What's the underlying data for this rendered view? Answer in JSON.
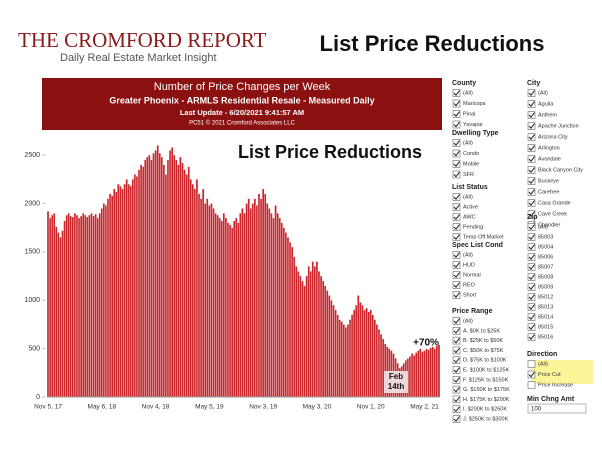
{
  "header": {
    "brand": "THE CROMFORD REPORT",
    "tagline": "Daily Real Estate Market Insight",
    "slide_title": "List Price Reductions"
  },
  "chart_data": {
    "type": "bar",
    "title": "Number of Price Changes per Week",
    "subtitle": "Greater Phoenix - ARMLS Residential Resale - Measured Daily",
    "update": "Last Update - 6/20/2021 9:41:57 AM",
    "credit": "PC51 © 2021 Cromford Associates LLC",
    "color": "#c9252b",
    "grid": false,
    "annotations": {
      "heading": "List Price Reductions",
      "change": "+70%",
      "low": [
        "Feb",
        "14th"
      ]
    },
    "ylim": [
      0,
      2800
    ],
    "yticks": [
      0,
      500,
      1000,
      1500,
      2000,
      2500
    ],
    "categories": [
      "Nov 5, 17",
      null,
      null,
      null,
      null,
      null,
      null,
      null,
      null,
      null,
      null,
      null,
      null,
      null,
      null,
      null,
      null,
      null,
      null,
      null,
      null,
      null,
      null,
      null,
      null,
      null,
      "May 6, 18",
      null,
      null,
      null,
      null,
      null,
      null,
      null,
      null,
      null,
      null,
      null,
      null,
      null,
      null,
      null,
      null,
      null,
      null,
      null,
      null,
      null,
      null,
      null,
      null,
      null,
      "Nov 4, 18",
      null,
      null,
      null,
      null,
      null,
      null,
      null,
      null,
      null,
      null,
      null,
      null,
      null,
      null,
      null,
      null,
      null,
      null,
      null,
      null,
      null,
      null,
      null,
      null,
      null,
      "May 5, 19",
      null,
      null,
      null,
      null,
      null,
      null,
      null,
      null,
      null,
      null,
      null,
      null,
      null,
      null,
      null,
      null,
      null,
      null,
      null,
      null,
      null,
      null,
      null,
      null,
      null,
      "Nov 3, 19",
      null,
      null,
      null,
      null,
      null,
      null,
      null,
      null,
      null,
      null,
      null,
      null,
      null,
      null,
      null,
      null,
      null,
      null,
      null,
      null,
      null,
      null,
      null,
      null,
      null,
      "May 3, 20",
      null,
      null,
      null,
      null,
      null,
      null,
      null,
      null,
      null,
      null,
      null,
      null,
      null,
      null,
      null,
      null,
      null,
      null,
      null,
      null,
      null,
      null,
      null,
      null,
      null,
      "Nov 1, 20",
      null,
      null,
      null,
      null,
      null,
      null,
      null,
      null,
      null,
      null,
      null,
      null,
      null,
      null,
      null,
      null,
      null,
      null,
      null,
      null,
      null,
      null,
      null,
      null,
      null,
      "May 2, 21",
      null,
      null,
      null,
      null,
      null,
      null,
      null
    ],
    "values": [
      1920,
      1850,
      1880,
      1900,
      1760,
      1700,
      1650,
      1720,
      1820,
      1880,
      1900,
      1870,
      1860,
      1900,
      1880,
      1850,
      1870,
      1900,
      1880,
      1860,
      1880,
      1900,
      1870,
      1890,
      1850,
      1900,
      1950,
      2000,
      1980,
      2050,
      2100,
      2080,
      2150,
      2120,
      2200,
      2180,
      2150,
      2200,
      2250,
      2200,
      2180,
      2250,
      2300,
      2280,
      2350,
      2400,
      2380,
      2450,
      2480,
      2500,
      2450,
      2520,
      2550,
      2600,
      2520,
      2480,
      2400,
      2300,
      2450,
      2550,
      2580,
      2500,
      2450,
      2400,
      2480,
      2420,
      2350,
      2300,
      2380,
      2250,
      2200,
      2150,
      2250,
      2100,
      2050,
      2150,
      2000,
      2050,
      1980,
      2000,
      1950,
      1900,
      1880,
      1850,
      1820,
      1900,
      1850,
      1800,
      1780,
      1750,
      1820,
      1850,
      1800,
      1900,
      1950,
      1900,
      2000,
      2050,
      1950,
      2000,
      2050,
      1980,
      2100,
      2050,
      2150,
      2100,
      2000,
      1950,
      1900,
      1850,
      1980,
      1900,
      1850,
      1800,
      1750,
      1700,
      1650,
      1600,
      1550,
      1450,
      1350,
      1300,
      1250,
      1200,
      1150,
      1250,
      1350,
      1300,
      1400,
      1350,
      1400,
      1300,
      1250,
      1200,
      1150,
      1100,
      1050,
      1000,
      950,
      900,
      850,
      800,
      780,
      750,
      720,
      750,
      800,
      850,
      900,
      950,
      1050,
      980,
      950,
      900,
      920,
      880,
      900,
      850,
      800,
      750,
      700,
      650,
      600,
      550,
      520,
      500,
      480,
      450,
      400,
      350,
      300,
      320,
      350,
      380,
      400,
      420,
      450,
      430,
      460,
      480,
      500,
      470,
      480,
      500,
      490,
      510,
      520,
      500,
      530,
      540
    ]
  },
  "filters": [
    {
      "title": "County",
      "items": [
        {
          "label": "(All)",
          "checked": true
        },
        {
          "label": "Maricopa",
          "checked": true
        },
        {
          "label": "Pinal",
          "checked": true
        },
        {
          "label": "Yavapai",
          "checked": true
        }
      ]
    },
    {
      "title": "Dwelling Type",
      "items": [
        {
          "label": "(All)",
          "checked": true
        },
        {
          "label": "Condo",
          "checked": true
        },
        {
          "label": "Mobile",
          "checked": true
        },
        {
          "label": "SFR",
          "checked": true
        }
      ]
    },
    {
      "title": "List Status",
      "items": [
        {
          "label": "(All)",
          "checked": true
        },
        {
          "label": "Active",
          "checked": true
        },
        {
          "label": "AWC",
          "checked": true
        },
        {
          "label": "Pending",
          "checked": true
        },
        {
          "label": "Temp Off Market",
          "checked": true
        }
      ]
    },
    {
      "title": "Spec List Cond",
      "items": [
        {
          "label": "(All)",
          "checked": true
        },
        {
          "label": "HUD",
          "checked": true
        },
        {
          "label": "Normal",
          "checked": true
        },
        {
          "label": "REO",
          "checked": true
        },
        {
          "label": "Short",
          "checked": true
        }
      ]
    },
    {
      "title": "Price Range",
      "items": [
        {
          "label": "(All)",
          "checked": true
        },
        {
          "label": "A. $0K to $25K",
          "checked": true
        },
        {
          "label": "B. $25K to $50K",
          "checked": true
        },
        {
          "label": "C. $50K to $75K",
          "checked": true
        },
        {
          "label": "D. $75K to $100K",
          "checked": true
        },
        {
          "label": "E. $100K to $125K",
          "checked": true
        },
        {
          "label": "F. $125K to $150K",
          "checked": true
        },
        {
          "label": "G. $150K to $175K",
          "checked": true
        },
        {
          "label": "H. $175K to $200K",
          "checked": true
        },
        {
          "label": "I. $200K to $250K",
          "checked": true
        },
        {
          "label": "J. $250K to $300K",
          "checked": true
        }
      ]
    },
    {
      "title": "City",
      "items": [
        {
          "label": "(All)",
          "checked": true
        },
        {
          "label": "Aguila",
          "checked": true
        },
        {
          "label": "Anthem",
          "checked": true
        },
        {
          "label": "Apache Junction",
          "checked": true
        },
        {
          "label": "Arizona City",
          "checked": true
        },
        {
          "label": "Arlington",
          "checked": true
        },
        {
          "label": "Avondale",
          "checked": true
        },
        {
          "label": "Black Canyon City",
          "checked": true
        },
        {
          "label": "Buckeye",
          "checked": true
        },
        {
          "label": "Carefree",
          "checked": true
        },
        {
          "label": "Casa Grande",
          "checked": true
        },
        {
          "label": "Cave Creek",
          "checked": true
        },
        {
          "label": "Chandler",
          "checked": true
        }
      ]
    },
    {
      "title": "Zip",
      "items": [
        {
          "label": "(All)",
          "checked": true
        },
        {
          "label": "85003",
          "checked": true
        },
        {
          "label": "85004",
          "checked": true
        },
        {
          "label": "85006",
          "checked": true
        },
        {
          "label": "85007",
          "checked": true
        },
        {
          "label": "85008",
          "checked": true
        },
        {
          "label": "85009",
          "checked": true
        },
        {
          "label": "85012",
          "checked": true
        },
        {
          "label": "85013",
          "checked": true
        },
        {
          "label": "85014",
          "checked": true
        },
        {
          "label": "85015",
          "checked": true
        },
        {
          "label": "85016",
          "checked": true
        }
      ]
    },
    {
      "title": "Direction",
      "items": [
        {
          "label": "(All)",
          "checked": false
        },
        {
          "label": "Price Cut",
          "checked": true
        },
        {
          "label": "Price Increase",
          "checked": false
        }
      ]
    }
  ],
  "min_change": {
    "title": "Min Chng Amt",
    "value": "100"
  }
}
